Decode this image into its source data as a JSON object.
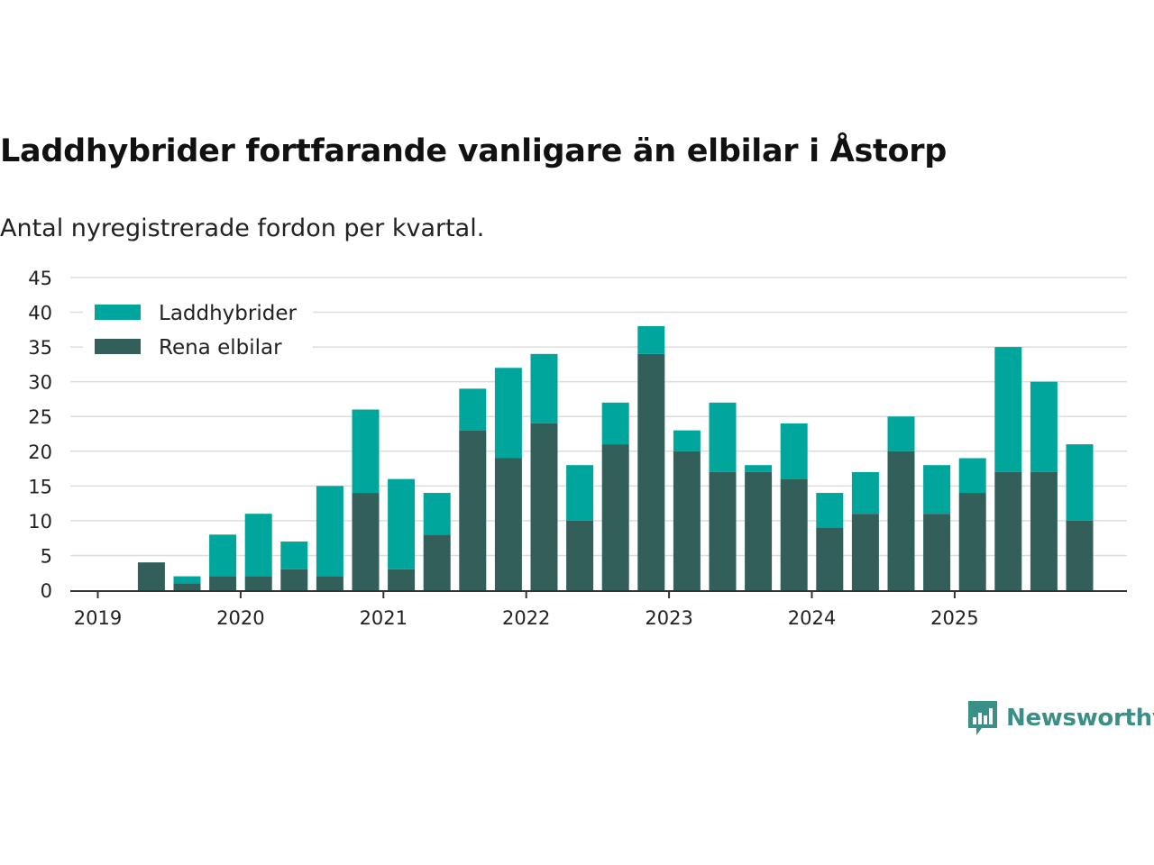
{
  "title": "Laddhybrider fortfarande vanligare än elbilar i Åstorp",
  "subtitle": "Antal nyregistrerade fordon per kvartal.",
  "brand": {
    "name": "Newsworthy",
    "logo_icon": "bar-chart-speech-bubble-icon"
  },
  "colors": {
    "laddhybrider": "#00a59b",
    "rena_elbilar": "#335f5b",
    "grid": "#dddddd",
    "axis": "#333333",
    "brand": "#3a8f86"
  },
  "chart_data": {
    "type": "bar",
    "stacked": true,
    "title": "Laddhybrider fortfarande vanligare än elbilar i Åstorp",
    "subtitle": "Antal nyregistrerade fordon per kvartal.",
    "xlabel": "",
    "ylabel": "",
    "ylim": [
      0,
      45
    ],
    "yticks": [
      0,
      5,
      10,
      15,
      20,
      25,
      30,
      35,
      40,
      45
    ],
    "xtick_labels": [
      "2019",
      "2020",
      "2021",
      "2022",
      "2023",
      "2024",
      "2025"
    ],
    "grid": true,
    "legend_position": "top-left",
    "categories": [
      "2019 Q1",
      "2019 Q2",
      "2019 Q3",
      "2019 Q4",
      "2020 Q1",
      "2020 Q2",
      "2020 Q3",
      "2020 Q4",
      "2021 Q1",
      "2021 Q2",
      "2021 Q3",
      "2021 Q4",
      "2022 Q1",
      "2022 Q2",
      "2022 Q3",
      "2022 Q4",
      "2023 Q1",
      "2023 Q2",
      "2023 Q3",
      "2023 Q4",
      "2024 Q1",
      "2024 Q2",
      "2024 Q3",
      "2024 Q4",
      "2025 Q1",
      "2025 Q2",
      "2025 Q3",
      "2025 Q4"
    ],
    "series": [
      {
        "name": "Rena elbilar",
        "values": [
          0,
          4,
          1,
          2,
          2,
          3,
          2,
          14,
          3,
          8,
          23,
          19,
          24,
          10,
          21,
          34,
          20,
          17,
          17,
          16,
          9,
          11,
          20,
          11,
          14,
          17,
          17,
          10
        ]
      },
      {
        "name": "Laddhybrider",
        "values": [
          0,
          0,
          1,
          6,
          9,
          4,
          13,
          12,
          13,
          6,
          6,
          13,
          10,
          8,
          6,
          4,
          3,
          10,
          1,
          8,
          5,
          6,
          5,
          7,
          5,
          18,
          13,
          11
        ]
      }
    ]
  }
}
